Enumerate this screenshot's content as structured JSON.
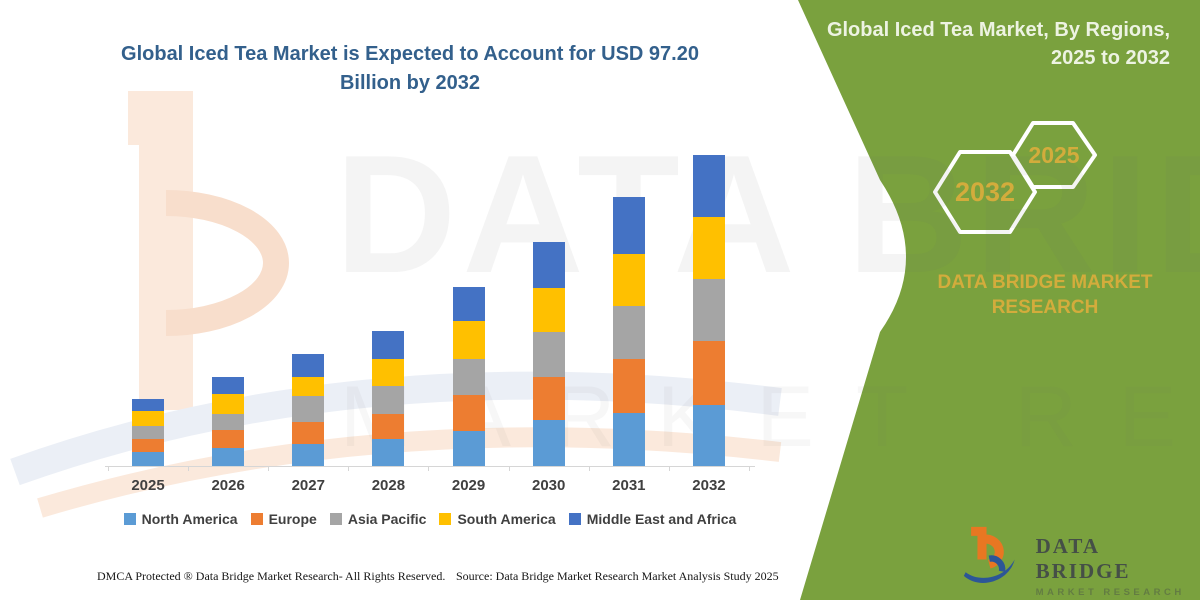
{
  "header": {
    "title_line1": "Global Iced Tea Market is Expected to Account for USD 97.20",
    "title_line2": "Billion by 2032",
    "title_color": "#33608C"
  },
  "side_panel": {
    "heading_line1": "Global Iced Tea Market, By Regions,",
    "heading_line2": "2025 to 2032",
    "hexagons": [
      {
        "label": "2032"
      },
      {
        "label": "2025"
      }
    ],
    "brand_caption": "DATA BRIDGE MARKET RESEARCH",
    "colors": {
      "panel_green": "#7AA13E",
      "accent_gold": "#D3AC3C",
      "hex_outline": "#FFFFFF"
    }
  },
  "watermark": {
    "line1": "DATA BRIDGE",
    "line2": "MARKET RESEARCH"
  },
  "chart_data": {
    "type": "bar",
    "stacked": true,
    "title": "Global Iced Tea Market is Expected to Account for USD 97.20 Billion by 2032",
    "unit": "USD Billion",
    "xlabel": "",
    "ylabel": "",
    "ylim": [
      0,
      100
    ],
    "grid": false,
    "legend_position": "bottom",
    "categories": [
      "2025",
      "2026",
      "2027",
      "2028",
      "2029",
      "2030",
      "2031",
      "2032"
    ],
    "series": [
      {
        "name": "North America",
        "color": "#5B9BD5",
        "values": [
          4.3,
          5.7,
          6.8,
          8.3,
          11.0,
          14.4,
          16.7,
          19.0
        ]
      },
      {
        "name": "Europe",
        "color": "#ED7D31",
        "values": [
          4.1,
          5.5,
          6.9,
          8.1,
          11.2,
          13.5,
          16.7,
          20.0
        ]
      },
      {
        "name": "Asia Pacific",
        "color": "#A5A5A5",
        "values": [
          4.2,
          5.2,
          8.3,
          8.5,
          11.2,
          14.1,
          16.7,
          19.3
        ]
      },
      {
        "name": "South America",
        "color": "#FFC000",
        "values": [
          4.5,
          6.1,
          5.9,
          8.4,
          11.8,
          13.6,
          16.2,
          19.5
        ]
      },
      {
        "name": "Middle East and Africa",
        "color": "#4472C4",
        "values": [
          4.0,
          5.3,
          7.0,
          8.8,
          10.8,
          14.4,
          17.8,
          19.4
        ]
      }
    ],
    "totals": [
      21.1,
      27.8,
      34.9,
      42.1,
      56.0,
      70.0,
      84.1,
      97.2
    ]
  },
  "footer": {
    "dmca": "DMCA Protected ® Data Bridge Market Research-  All Rights Reserved.",
    "source": "Source: Data Bridge Market Research  Market Analysis Study 2025"
  },
  "logo": {
    "wordmark": "DATA BRIDGE",
    "tagline": "MARKET RESEARCH"
  }
}
